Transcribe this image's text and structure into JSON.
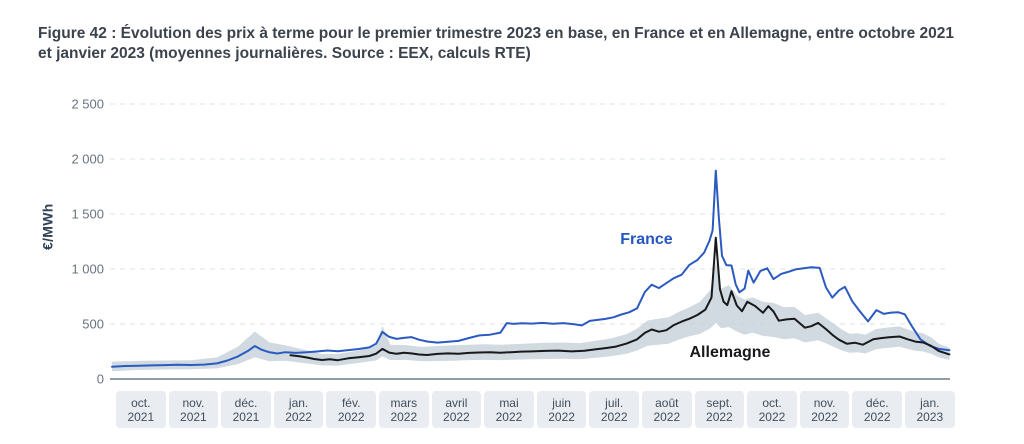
{
  "figure": {
    "title_line1": "Figure 42 : Évolution des prix à terme pour le premier trimestre 2023 en base, en France et en Allemagne, entre octobre 2021",
    "title_line2": "et janvier 2023 (moyennes journalières. Source : EEX, calculs RTE)"
  },
  "colors": {
    "france_line": "#2b5ac0",
    "allemagne_line": "#17191c",
    "band": "#c5d1d8",
    "gridline": "#d8e3e8",
    "axis_line": "#6f7c88",
    "tick_text": "#68747f",
    "month_box_bg": "#e9edf1",
    "month_box_text": "#414e5c",
    "title_text": "#3c434c",
    "france_label": "#2456c2",
    "allemagne_label": "#17191c"
  },
  "chart_data": {
    "type": "line",
    "title": "Évolution des prix à terme pour le premier trimestre 2023 en base, en France et en Allemagne, entre octobre 2021 et janvier 2023",
    "xlabel": "",
    "ylabel": "€/MWh",
    "x_unit": "months since October 2021",
    "x_range": [
      0,
      16
    ],
    "ylim": [
      0,
      2500
    ],
    "grid": "horizontal dashed",
    "legend_position": "inline annotations",
    "yticks": [
      {
        "value": 0,
        "label": "0"
      },
      {
        "value": 500,
        "label": "500"
      },
      {
        "value": 1000,
        "label": "1 000"
      },
      {
        "value": 1500,
        "label": "1 500"
      },
      {
        "value": 2000,
        "label": "2 000"
      },
      {
        "value": 2500,
        "label": "2 500"
      }
    ],
    "x_tick_boxes": [
      {
        "month": "oct.",
        "year": "2021"
      },
      {
        "month": "nov.",
        "year": "2021"
      },
      {
        "month": "déc.",
        "year": "2021"
      },
      {
        "month": "jan.",
        "year": "2022"
      },
      {
        "month": "fév.",
        "year": "2022"
      },
      {
        "month": "mars",
        "year": "2022"
      },
      {
        "month": "avril",
        "year": "2022"
      },
      {
        "month": "mai",
        "year": "2022"
      },
      {
        "month": "juin",
        "year": "2022"
      },
      {
        "month": "juil.",
        "year": "2022"
      },
      {
        "month": "août",
        "year": "2022"
      },
      {
        "month": "sept.",
        "year": "2022"
      },
      {
        "month": "oct.",
        "year": "2022"
      },
      {
        "month": "nov.",
        "year": "2022"
      },
      {
        "month": "déc.",
        "year": "2022"
      },
      {
        "month": "jan.",
        "year": "2023"
      }
    ],
    "annotations": [
      {
        "text": "France",
        "x": 9.68,
        "y": 1345,
        "color": "#2456c2"
      },
      {
        "text": "Allemagne",
        "x": 11.0,
        "y": 318,
        "color": "#17191c"
      }
    ],
    "band": {
      "name": "min-max range (Allemagne)",
      "color": "#c5d1d8",
      "points": [
        [
          0.0,
          70,
          158
        ],
        [
          0.5,
          82,
          165
        ],
        [
          1.0,
          86,
          168
        ],
        [
          1.5,
          88,
          170
        ],
        [
          2.0,
          96,
          196
        ],
        [
          2.4,
          135,
          295
        ],
        [
          2.72,
          198,
          432
        ],
        [
          3.0,
          162,
          332
        ],
        [
          3.3,
          166,
          306
        ],
        [
          3.7,
          142,
          262
        ],
        [
          4.0,
          124,
          226
        ],
        [
          4.3,
          122,
          228
        ],
        [
          4.7,
          146,
          258
        ],
        [
          5.03,
          168,
          302
        ],
        [
          5.15,
          205,
          482
        ],
        [
          5.3,
          172,
          312
        ],
        [
          5.6,
          174,
          308
        ],
        [
          5.9,
          162,
          292
        ],
        [
          6.2,
          164,
          300
        ],
        [
          6.5,
          166,
          306
        ],
        [
          6.8,
          172,
          312
        ],
        [
          7.1,
          174,
          316
        ],
        [
          7.4,
          172,
          312
        ],
        [
          7.7,
          176,
          318
        ],
        [
          8.0,
          180,
          324
        ],
        [
          8.3,
          182,
          330
        ],
        [
          8.6,
          184,
          332
        ],
        [
          8.9,
          180,
          326
        ],
        [
          9.2,
          192,
          346
        ],
        [
          9.5,
          206,
          368
        ],
        [
          9.8,
          230,
          408
        ],
        [
          10.0,
          258,
          456
        ],
        [
          10.2,
          302,
          532
        ],
        [
          10.4,
          312,
          548
        ],
        [
          10.6,
          320,
          562
        ],
        [
          10.8,
          358,
          612
        ],
        [
          11.0,
          388,
          652
        ],
        [
          11.2,
          410,
          702
        ],
        [
          11.4,
          462,
          812
        ],
        [
          11.5,
          512,
          1072
        ],
        [
          11.6,
          462,
          822
        ],
        [
          11.75,
          472,
          852
        ],
        [
          11.9,
          432,
          762
        ],
        [
          12.05,
          402,
          722
        ],
        [
          12.2,
          422,
          742
        ],
        [
          12.4,
          392,
          702
        ],
        [
          12.6,
          382,
          692
        ],
        [
          12.8,
          362,
          652
        ],
        [
          13.0,
          370,
          655
        ],
        [
          13.2,
          332,
          582
        ],
        [
          13.45,
          352,
          602
        ],
        [
          13.6,
          324,
          552
        ],
        [
          13.75,
          292,
          502
        ],
        [
          13.9,
          260,
          450
        ],
        [
          14.05,
          238,
          410
        ],
        [
          14.2,
          244,
          416
        ],
        [
          14.35,
          232,
          402
        ],
        [
          14.55,
          270,
          454
        ],
        [
          14.7,
          280,
          464
        ],
        [
          14.85,
          286,
          472
        ],
        [
          15.0,
          294,
          478
        ],
        [
          15.15,
          274,
          452
        ],
        [
          15.3,
          256,
          426
        ],
        [
          15.45,
          250,
          416
        ],
        [
          15.6,
          230,
          380
        ],
        [
          15.75,
          196,
          320
        ],
        [
          15.95,
          174,
          284
        ]
      ]
    },
    "series": [
      {
        "name": "France",
        "color": "#2b5ac0",
        "points": [
          [
            0.0,
            112
          ],
          [
            0.25,
            118
          ],
          [
            0.5,
            121
          ],
          [
            0.75,
            124
          ],
          [
            1.0,
            126
          ],
          [
            1.25,
            129
          ],
          [
            1.5,
            127
          ],
          [
            1.75,
            131
          ],
          [
            2.0,
            142
          ],
          [
            2.2,
            168
          ],
          [
            2.4,
            205
          ],
          [
            2.6,
            258
          ],
          [
            2.72,
            300
          ],
          [
            2.85,
            266
          ],
          [
            3.0,
            243
          ],
          [
            3.15,
            232
          ],
          [
            3.3,
            244
          ],
          [
            3.5,
            237
          ],
          [
            3.7,
            243
          ],
          [
            3.9,
            250
          ],
          [
            4.1,
            259
          ],
          [
            4.3,
            253
          ],
          [
            4.5,
            263
          ],
          [
            4.7,
            273
          ],
          [
            4.9,
            287
          ],
          [
            5.03,
            320
          ],
          [
            5.15,
            428
          ],
          [
            5.28,
            383
          ],
          [
            5.42,
            365
          ],
          [
            5.56,
            374
          ],
          [
            5.7,
            381
          ],
          [
            5.85,
            357
          ],
          [
            6.0,
            341
          ],
          [
            6.2,
            331
          ],
          [
            6.4,
            338
          ],
          [
            6.6,
            346
          ],
          [
            6.8,
            373
          ],
          [
            7.0,
            396
          ],
          [
            7.2,
            403
          ],
          [
            7.4,
            422
          ],
          [
            7.52,
            508
          ],
          [
            7.65,
            501
          ],
          [
            7.8,
            507
          ],
          [
            8.0,
            504
          ],
          [
            8.2,
            510
          ],
          [
            8.4,
            503
          ],
          [
            8.6,
            508
          ],
          [
            8.8,
            497
          ],
          [
            8.95,
            487
          ],
          [
            9.1,
            528
          ],
          [
            9.25,
            537
          ],
          [
            9.4,
            546
          ],
          [
            9.55,
            561
          ],
          [
            9.7,
            586
          ],
          [
            9.85,
            606
          ],
          [
            10.0,
            642
          ],
          [
            10.15,
            792
          ],
          [
            10.28,
            857
          ],
          [
            10.42,
            826
          ],
          [
            10.56,
            872
          ],
          [
            10.7,
            916
          ],
          [
            10.85,
            948
          ],
          [
            11.0,
            1038
          ],
          [
            11.15,
            1082
          ],
          [
            11.28,
            1150
          ],
          [
            11.38,
            1258
          ],
          [
            11.44,
            1350
          ],
          [
            11.5,
            1895
          ],
          [
            11.56,
            1460
          ],
          [
            11.62,
            1120
          ],
          [
            11.7,
            1035
          ],
          [
            11.8,
            1032
          ],
          [
            11.88,
            860
          ],
          [
            11.95,
            788
          ],
          [
            12.05,
            822
          ],
          [
            12.12,
            985
          ],
          [
            12.22,
            876
          ],
          [
            12.35,
            982
          ],
          [
            12.48,
            1006
          ],
          [
            12.6,
            908
          ],
          [
            12.75,
            956
          ],
          [
            12.88,
            974
          ],
          [
            13.02,
            996
          ],
          [
            13.18,
            1006
          ],
          [
            13.32,
            1016
          ],
          [
            13.48,
            1010
          ],
          [
            13.6,
            832
          ],
          [
            13.72,
            740
          ],
          [
            13.85,
            806
          ],
          [
            13.96,
            838
          ],
          [
            14.1,
            706
          ],
          [
            14.24,
            618
          ],
          [
            14.4,
            524
          ],
          [
            14.56,
            626
          ],
          [
            14.7,
            592
          ],
          [
            14.84,
            604
          ],
          [
            14.98,
            606
          ],
          [
            15.1,
            588
          ],
          [
            15.24,
            476
          ],
          [
            15.4,
            360
          ],
          [
            15.58,
            302
          ],
          [
            15.75,
            274
          ],
          [
            15.95,
            262
          ]
        ]
      },
      {
        "name": "Allemagne",
        "color": "#17191c",
        "points": [
          [
            3.4,
            216
          ],
          [
            3.55,
            208
          ],
          [
            3.7,
            196
          ],
          [
            3.85,
            182
          ],
          [
            4.0,
            173
          ],
          [
            4.15,
            179
          ],
          [
            4.3,
            171
          ],
          [
            4.5,
            188
          ],
          [
            4.7,
            198
          ],
          [
            4.9,
            209
          ],
          [
            5.03,
            230
          ],
          [
            5.15,
            274
          ],
          [
            5.28,
            240
          ],
          [
            5.42,
            229
          ],
          [
            5.56,
            239
          ],
          [
            5.7,
            233
          ],
          [
            5.85,
            223
          ],
          [
            6.0,
            218
          ],
          [
            6.2,
            228
          ],
          [
            6.4,
            233
          ],
          [
            6.6,
            229
          ],
          [
            6.8,
            237
          ],
          [
            7.0,
            241
          ],
          [
            7.2,
            243
          ],
          [
            7.4,
            239
          ],
          [
            7.6,
            244
          ],
          [
            7.8,
            249
          ],
          [
            8.0,
            251
          ],
          [
            8.25,
            255
          ],
          [
            8.5,
            258
          ],
          [
            8.75,
            251
          ],
          [
            9.0,
            257
          ],
          [
            9.2,
            269
          ],
          [
            9.4,
            281
          ],
          [
            9.6,
            295
          ],
          [
            9.8,
            322
          ],
          [
            10.0,
            360
          ],
          [
            10.15,
            420
          ],
          [
            10.28,
            450
          ],
          [
            10.42,
            430
          ],
          [
            10.56,
            444
          ],
          [
            10.7,
            490
          ],
          [
            10.85,
            522
          ],
          [
            11.0,
            548
          ],
          [
            11.15,
            582
          ],
          [
            11.3,
            630
          ],
          [
            11.42,
            740
          ],
          [
            11.5,
            1285
          ],
          [
            11.58,
            815
          ],
          [
            11.65,
            702
          ],
          [
            11.72,
            672
          ],
          [
            11.8,
            798
          ],
          [
            11.9,
            668
          ],
          [
            12.0,
            616
          ],
          [
            12.1,
            702
          ],
          [
            12.25,
            664
          ],
          [
            12.4,
            602
          ],
          [
            12.5,
            662
          ],
          [
            12.6,
            614
          ],
          [
            12.7,
            530
          ],
          [
            12.85,
            542
          ],
          [
            13.0,
            548
          ],
          [
            13.2,
            466
          ],
          [
            13.32,
            480
          ],
          [
            13.45,
            510
          ],
          [
            13.6,
            454
          ],
          [
            13.72,
            402
          ],
          [
            13.85,
            356
          ],
          [
            14.0,
            320
          ],
          [
            14.15,
            330
          ],
          [
            14.3,
            312
          ],
          [
            14.5,
            362
          ],
          [
            14.65,
            372
          ],
          [
            14.8,
            380
          ],
          [
            15.0,
            386
          ],
          [
            15.15,
            362
          ],
          [
            15.3,
            340
          ],
          [
            15.45,
            332
          ],
          [
            15.6,
            302
          ],
          [
            15.75,
            254
          ],
          [
            15.95,
            224
          ]
        ]
      }
    ]
  }
}
